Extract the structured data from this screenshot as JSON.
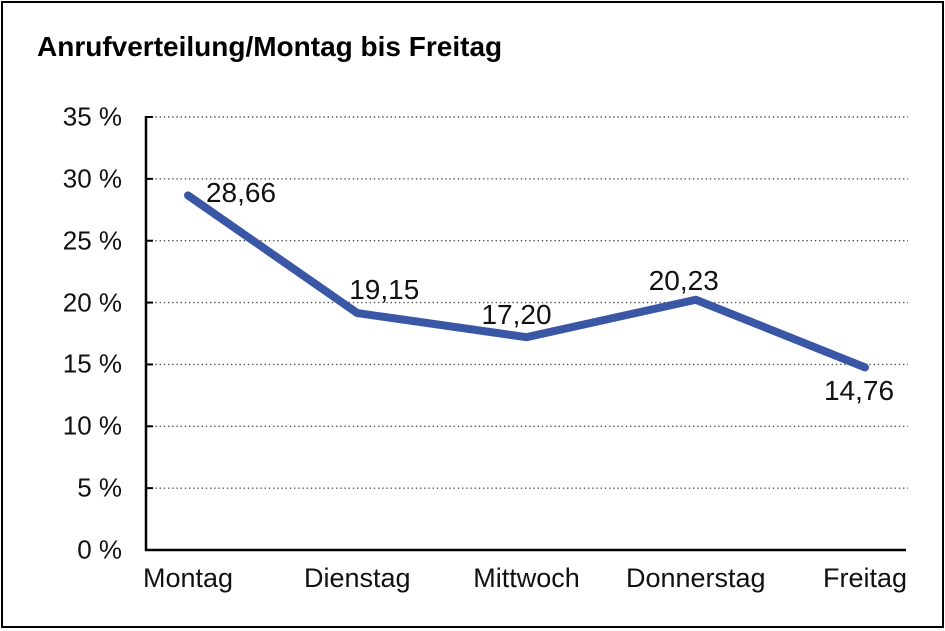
{
  "accent_colors": {
    "line": "#3A57A6",
    "axis": "#000000",
    "gridline": "#555555",
    "text": "#111111",
    "background": "#FFFFFF"
  },
  "chart_data": {
    "type": "line",
    "title": "Anrufverteilung/Montag bis Freitag",
    "categories": [
      "Montag",
      "Dienstag",
      "Mittwoch",
      "Donnerstag",
      "Freitag"
    ],
    "values": [
      28.66,
      19.15,
      17.2,
      20.23,
      14.76
    ],
    "value_labels": [
      "28,66",
      "19,15",
      "17,20",
      "20,23",
      "14,76"
    ],
    "series_name": "Anrufverteilung",
    "xlabel": "",
    "ylabel": "",
    "ylim": [
      0,
      35
    ],
    "y_ticks": [
      0,
      5,
      10,
      15,
      20,
      25,
      30,
      35
    ],
    "y_tick_labels": [
      "0 %",
      "5 %",
      "10 %",
      "15 %",
      "20 %",
      "25 %",
      "30 %",
      "35 %"
    ],
    "grid": "horizontal dotted",
    "legend_position": "none",
    "line_color": "#3A57A6"
  }
}
